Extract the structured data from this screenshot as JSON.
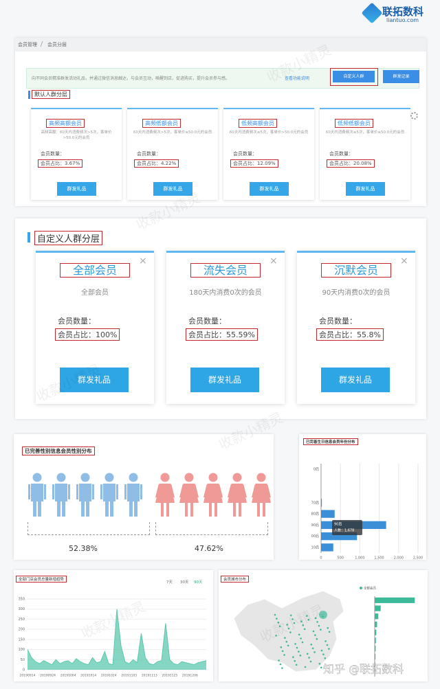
{
  "logo": {
    "name": "联拓数科",
    "domain": "liantuo.com"
  },
  "watermark": "收款小精灵",
  "footer_watermark": "知乎 @联拓数科",
  "default_layers": {
    "breadcrumb": [
      "会员管理",
      "会员分层"
    ],
    "notice": "向不同会员精准群发活动礼品，并通过微信消息触达，与会员互动，唤醒到店，促进购买，提升会员参与感。",
    "notice_link": "查看功能说明",
    "buttons": [
      "自定义人群",
      "群发记录"
    ],
    "title": "默认人群分层",
    "cards": [
      {
        "title": "高频高额会员",
        "desc": "高频高额：60天内消费频次>5次，客单价>50.0元的会员",
        "count": "会员数量：",
        "ratio": "会员占比：3.67%",
        "button": "群发礼品"
      },
      {
        "title": "高频低额会员",
        "desc": "60天内消费频次>5次，客单价≤50.0元的会员",
        "count": "会员数量：",
        "ratio": "会员占比：4.22%",
        "button": "群发礼品"
      },
      {
        "title": "低频高额会员",
        "desc": "60天内消费频次≤5次，客单价>50.0元的会员",
        "count": "会员数量：",
        "ratio": "会员占比：12.09%",
        "button": "群发礼品"
      },
      {
        "title": "低频低额会员",
        "desc": "60天内消费频次≤5次，客单价≤50.0元的会员",
        "count": "会员数量：",
        "ratio": "会员占比：20.08%",
        "button": "群发礼品"
      }
    ]
  },
  "custom_layers": {
    "title": "自定义人群分层",
    "cards": [
      {
        "title": "全部会员",
        "desc": "全部会员",
        "count": "会员数量：",
        "ratio": "会员占比：100%",
        "button": "群发礼品"
      },
      {
        "title": "流失会员",
        "desc": "180天内消费0次的会员",
        "count": "会员数量：",
        "ratio": "会员占比：55.59%",
        "button": "群发礼品"
      },
      {
        "title": "沉默会员",
        "desc": "90天内消费0次的会员",
        "count": "会员数量：",
        "ratio": "会员占比：55.8%",
        "button": "群发礼品"
      }
    ]
  },
  "gender": {
    "title": "已完善性别信息会员性别分布",
    "labels": [
      "52.38%",
      "47.62%"
    ]
  },
  "chart_data": [
    {
      "type": "bar",
      "orientation": "horizontal",
      "title": "已完善生日信息会员年份分布",
      "categories": [
        "0后",
        null,
        null,
        "70后",
        "80后",
        "90后",
        "00后",
        "10后"
      ],
      "values": [
        0,
        0,
        0,
        20,
        350,
        1678,
        927,
        315
      ],
      "color": "#3a8fd6",
      "xlim": [
        0,
        2500
      ],
      "xticks": [
        0,
        500,
        {
          "value": 1000,
          "label": "1,000"
        },
        {
          "value": 1500,
          "label": "1,500"
        },
        {
          "value": 2000,
          "label": "2,000"
        },
        {
          "value": 2500,
          "label": "2,500"
        }
      ],
      "grid": true,
      "tooltip": {
        "title": "90后",
        "text": "人数：1,678"
      }
    },
    {
      "type": "line",
      "fill": true,
      "title": "全部门店会员总量新增趋势",
      "tabs": [
        "7天",
        "30天",
        "90天"
      ],
      "active_tab": 2,
      "categories": [
        "20190914",
        null,
        null,
        null,
        null,
        "20190924",
        null,
        null,
        null,
        null,
        "20191004",
        null,
        null,
        null,
        null,
        "20191014",
        null,
        null,
        null,
        null,
        "20191024",
        null,
        null,
        null,
        null,
        "20191103",
        null,
        null,
        null,
        null,
        "20191113",
        null,
        null,
        null,
        null,
        "20191125",
        null,
        null,
        null,
        null,
        "20191206",
        null,
        null,
        null,
        null
      ],
      "values": [
        100,
        60,
        40,
        30,
        45,
        35,
        25,
        50,
        30,
        40,
        45,
        30,
        55,
        40,
        30,
        25,
        60,
        35,
        40,
        90,
        30,
        25,
        300,
        120,
        40,
        30,
        50,
        35,
        180,
        60,
        30,
        25,
        40,
        45,
        230,
        50,
        30,
        25,
        40,
        35,
        30,
        25,
        35,
        40,
        45
      ],
      "color": "#5cc8ae",
      "ylim": [
        0,
        350
      ],
      "yticks": [
        0,
        50,
        100,
        150,
        200,
        250,
        300,
        350
      ],
      "grid": true
    },
    {
      "type": "bar",
      "orientation": "horizontal",
      "title": "会员城市分布",
      "categories": [
        null,
        null,
        null,
        null,
        null,
        null,
        null,
        null,
        null,
        null
      ],
      "series": [
        {
          "name": "全部会员",
          "color": "#3dba9a",
          "values": [
            1000,
            150,
            90,
            60,
            40,
            30,
            25,
            20,
            15,
            10
          ]
        }
      ],
      "xlim": [
        0,
        1200
      ],
      "grid": true
    }
  ]
}
